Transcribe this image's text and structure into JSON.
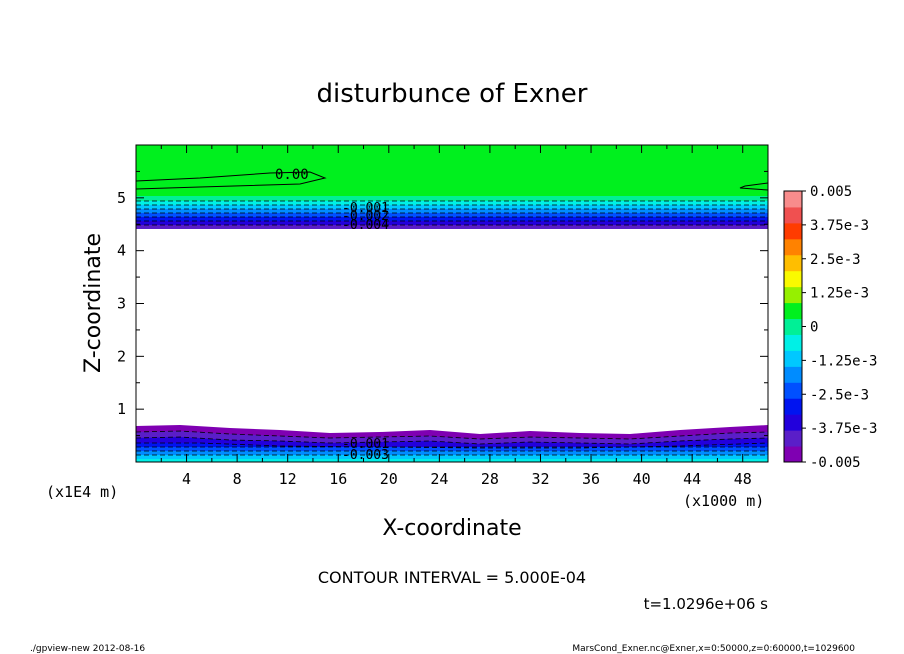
{
  "chart_data": {
    "type": "contour",
    "title": "disturbunce of Exner",
    "xlabel": "X-coordinate",
    "ylabel": "Z-coordinate",
    "x_unit": "(x1000 m)",
    "y_unit": "(x1E4 m)",
    "xlim": [
      0,
      50
    ],
    "ylim": [
      0,
      6
    ],
    "x_ticks": [
      4,
      8,
      12,
      16,
      20,
      24,
      28,
      32,
      36,
      40,
      44,
      48
    ],
    "y_ticks": [
      1,
      2,
      3,
      4,
      5
    ],
    "contour_interval_text": "CONTOUR INTERVAL = 5.000E-04",
    "time_text": "t=1.0296e+06 s",
    "contour_labels": [
      "0.00",
      "-0.001",
      "-0.002",
      "-0.004",
      "-0.001",
      "-0.003"
    ],
    "colorbar": {
      "min": -0.005,
      "max": 0.005,
      "tick_labels": [
        "0.005",
        "3.75e-3",
        "2.5e-3",
        "1.25e-3",
        "0",
        "-1.25e-3",
        "-2.5e-3",
        "-3.75e-3",
        "-0.005"
      ],
      "colors_bottom_to_top": [
        "#7f00b2",
        "#5a1ec8",
        "#2200dc",
        "#0014f0",
        "#0050ff",
        "#008cff",
        "#00c8ff",
        "#00f0e6",
        "#00f096",
        "#00f01e",
        "#96f000",
        "#fafa00",
        "#ffbe00",
        "#ff8200",
        "#ff3c00",
        "#f05050",
        "#f88c8c"
      ]
    },
    "footer_left": "./gpview-new 2012-08-16",
    "footer_right": "MarsCond_Exner.nc@Exner,x=0:50000,z=0:60000,t=1029600"
  }
}
